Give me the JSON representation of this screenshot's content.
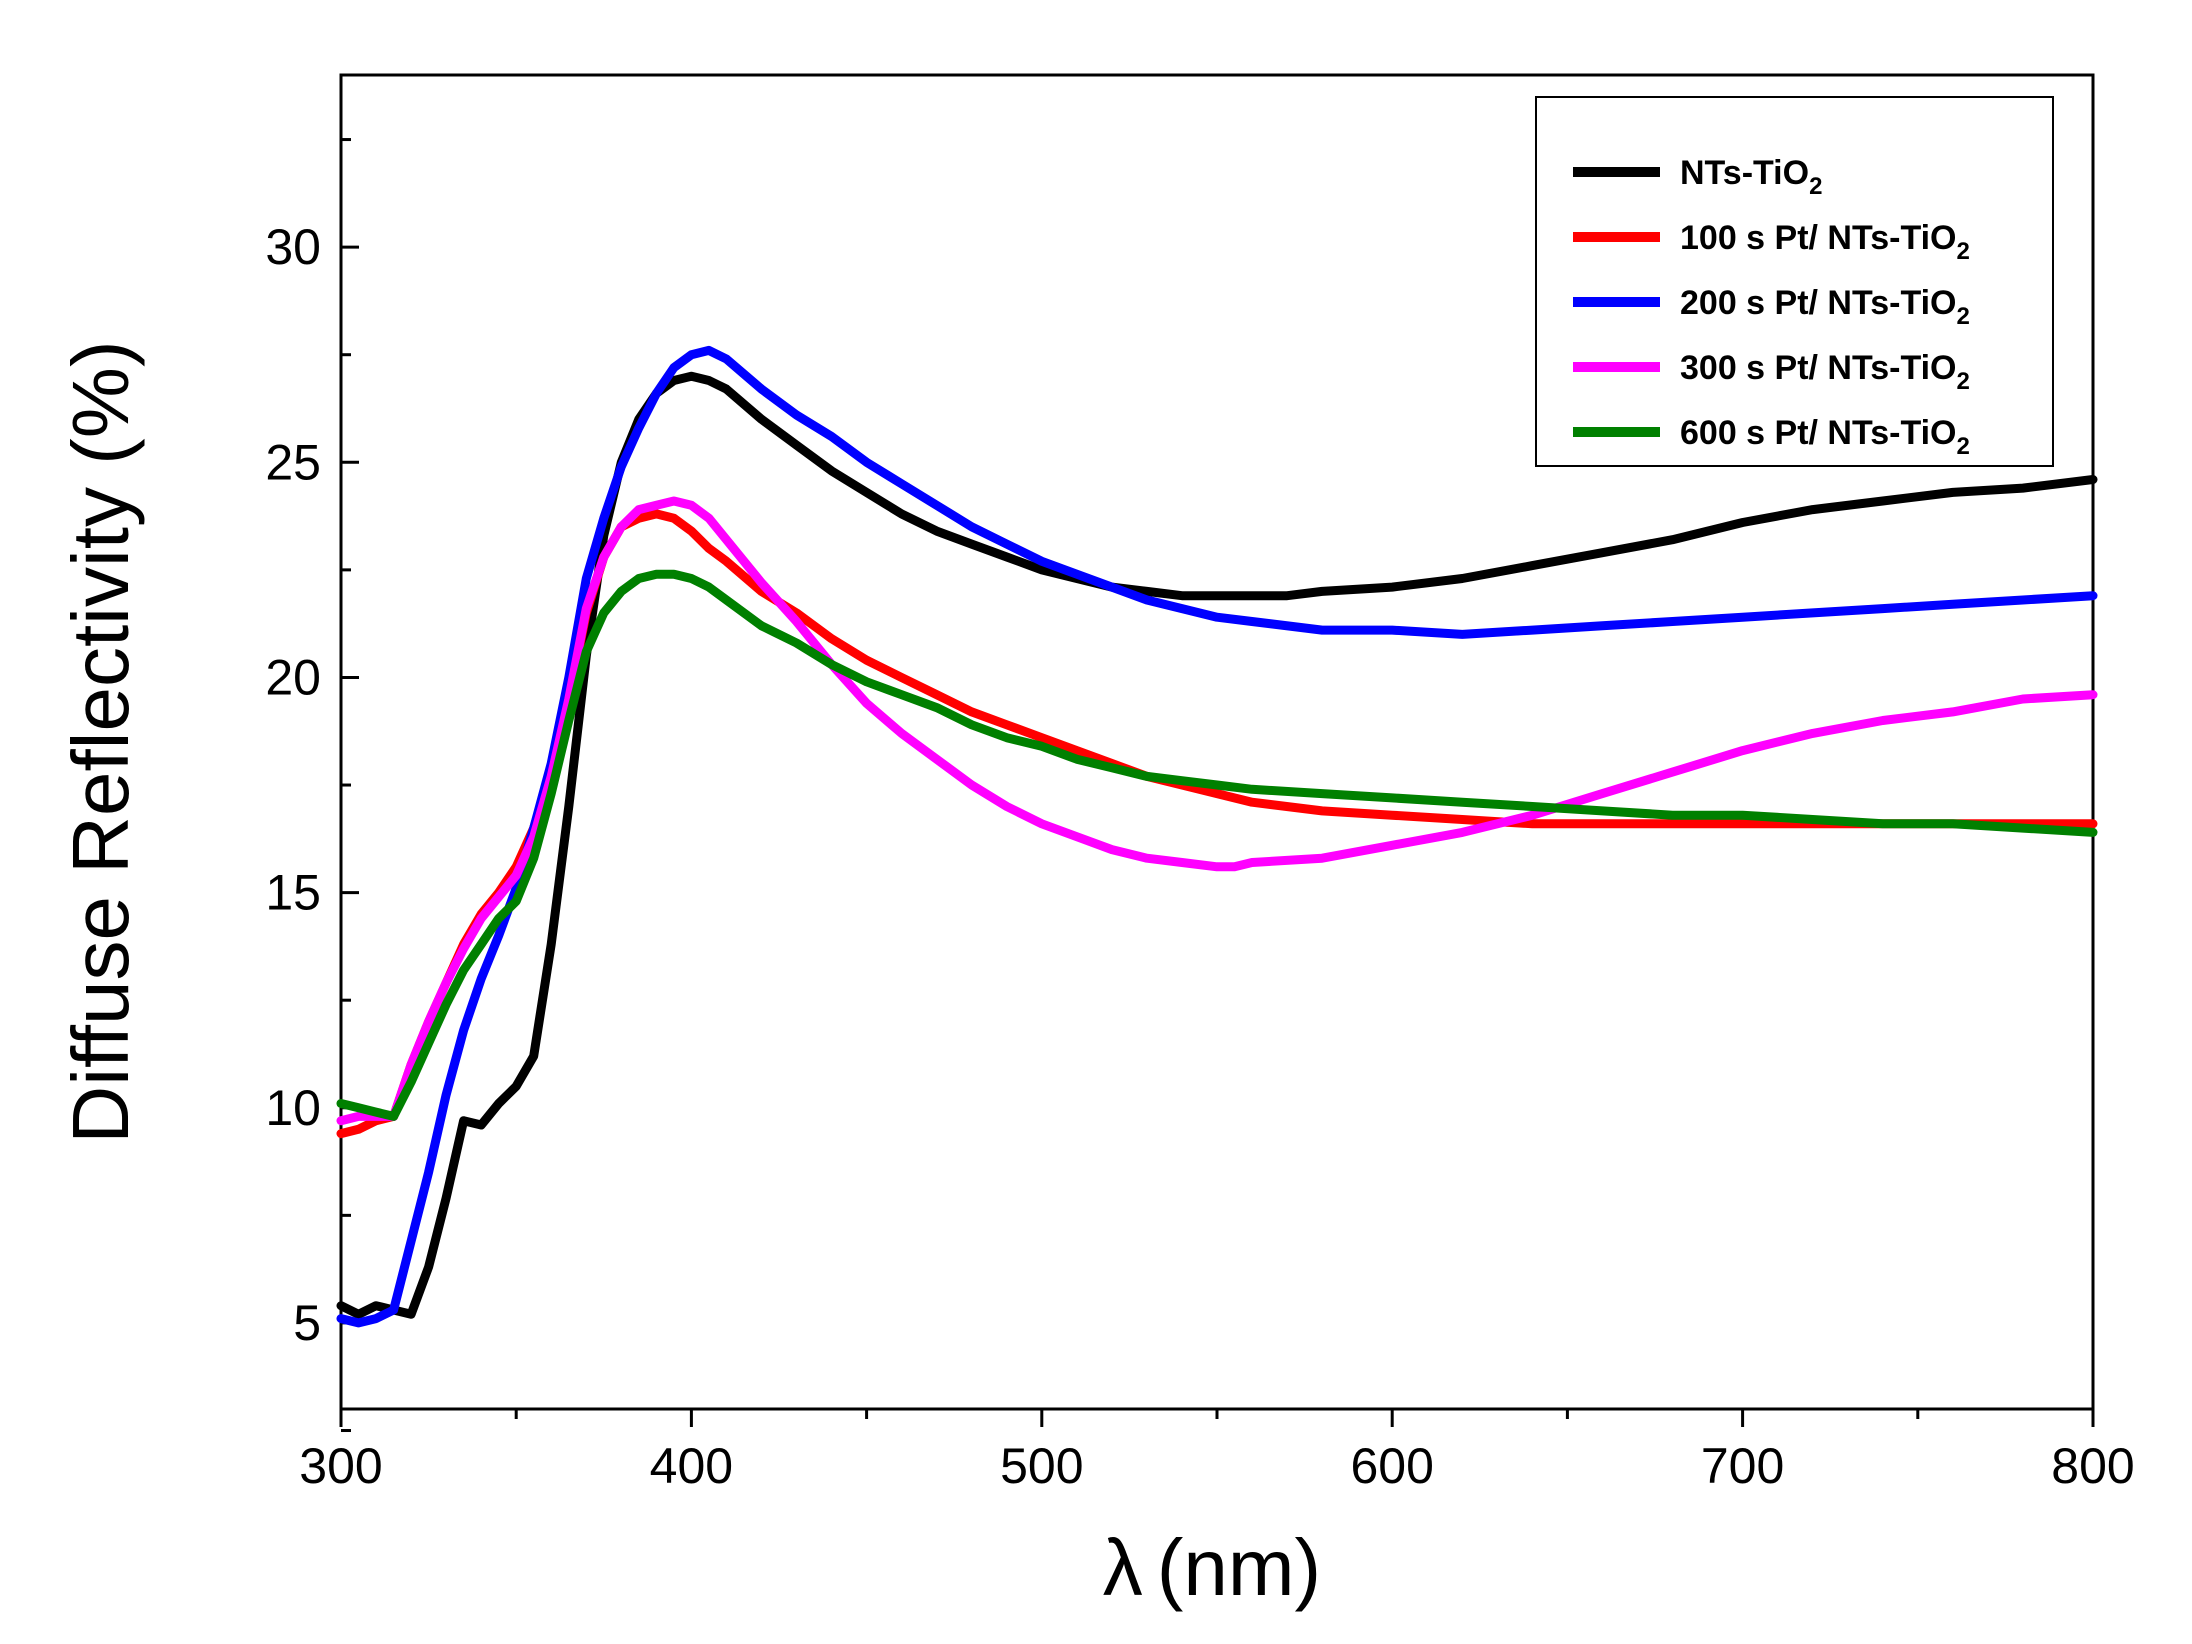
{
  "chart_data": {
    "type": "line",
    "title": "",
    "xlabel_symbol": "λ",
    "xlabel_unit": "(nm)",
    "ylabel": "Diffuse Reflectivity (%)",
    "xlim": [
      300,
      800
    ],
    "ylim": [
      3,
      34
    ],
    "xticks": [
      300,
      400,
      500,
      600,
      700,
      800
    ],
    "yticks": [
      5,
      10,
      15,
      20,
      25,
      30
    ],
    "grid": false,
    "legend_position": "top-right",
    "series": [
      {
        "name": "NTs-TiO",
        "subscript": "2",
        "color": "#000000",
        "x": [
          300,
          305,
          310,
          315,
          320,
          325,
          330,
          335,
          340,
          345,
          350,
          355,
          360,
          365,
          370,
          375,
          380,
          385,
          390,
          395,
          400,
          405,
          410,
          420,
          430,
          440,
          450,
          460,
          470,
          480,
          490,
          500,
          510,
          520,
          530,
          540,
          550,
          560,
          570,
          580,
          600,
          620,
          640,
          660,
          680,
          700,
          720,
          740,
          760,
          780,
          800
        ],
        "y": [
          5.4,
          5.2,
          5.4,
          5.3,
          5.2,
          6.3,
          7.9,
          9.7,
          9.6,
          10.1,
          10.5,
          11.2,
          13.8,
          17.0,
          20.5,
          23.3,
          25.0,
          26.0,
          26.6,
          26.9,
          27.0,
          26.9,
          26.7,
          26.0,
          25.4,
          24.8,
          24.3,
          23.8,
          23.4,
          23.1,
          22.8,
          22.5,
          22.3,
          22.1,
          22.0,
          21.9,
          21.9,
          21.9,
          21.9,
          22.0,
          22.1,
          22.3,
          22.6,
          22.9,
          23.2,
          23.6,
          23.9,
          24.1,
          24.3,
          24.4,
          24.6
        ]
      },
      {
        "name": "100 s Pt/ NTs-TiO",
        "subscript": "2",
        "color": "#ff0000",
        "x": [
          300,
          305,
          310,
          315,
          320,
          325,
          330,
          335,
          340,
          345,
          350,
          355,
          360,
          365,
          370,
          375,
          380,
          385,
          390,
          395,
          400,
          405,
          410,
          420,
          430,
          440,
          450,
          460,
          470,
          480,
          490,
          500,
          510,
          520,
          530,
          540,
          550,
          560,
          580,
          600,
          620,
          640,
          660,
          680,
          700,
          720,
          740,
          760,
          780,
          800
        ],
        "y": [
          9.4,
          9.5,
          9.7,
          9.8,
          11.0,
          12.0,
          12.9,
          13.8,
          14.5,
          15.0,
          15.6,
          16.5,
          17.8,
          19.5,
          21.5,
          22.8,
          23.5,
          23.7,
          23.8,
          23.7,
          23.4,
          23.0,
          22.7,
          22.0,
          21.5,
          20.9,
          20.4,
          20.0,
          19.6,
          19.2,
          18.9,
          18.6,
          18.3,
          18.0,
          17.7,
          17.5,
          17.3,
          17.1,
          16.9,
          16.8,
          16.7,
          16.6,
          16.6,
          16.6,
          16.6,
          16.6,
          16.6,
          16.6,
          16.6,
          16.6
        ]
      },
      {
        "name": "200 s Pt/ NTs-TiO",
        "subscript": "2",
        "color": "#0000ff",
        "x": [
          300,
          305,
          310,
          315,
          320,
          325,
          330,
          335,
          340,
          345,
          350,
          355,
          360,
          365,
          370,
          375,
          380,
          385,
          390,
          395,
          400,
          405,
          410,
          420,
          430,
          440,
          450,
          460,
          470,
          480,
          490,
          500,
          510,
          520,
          530,
          540,
          550,
          560,
          580,
          600,
          620,
          640,
          660,
          680,
          700,
          720,
          740,
          760,
          780,
          800
        ],
        "y": [
          5.1,
          5.0,
          5.1,
          5.3,
          6.9,
          8.5,
          10.3,
          11.8,
          13.0,
          14.0,
          15.1,
          16.5,
          18.0,
          20.0,
          22.3,
          23.7,
          24.9,
          25.8,
          26.6,
          27.2,
          27.5,
          27.6,
          27.4,
          26.7,
          26.1,
          25.6,
          25.0,
          24.5,
          24.0,
          23.5,
          23.1,
          22.7,
          22.4,
          22.1,
          21.8,
          21.6,
          21.4,
          21.3,
          21.1,
          21.1,
          21.0,
          21.1,
          21.2,
          21.3,
          21.4,
          21.5,
          21.6,
          21.7,
          21.8,
          21.9
        ]
      },
      {
        "name": "300 s Pt/ NTs-TiO",
        "subscript": "2",
        "color": "#ff00ff",
        "x": [
          300,
          305,
          310,
          315,
          320,
          325,
          330,
          335,
          340,
          345,
          350,
          355,
          360,
          365,
          370,
          375,
          380,
          385,
          390,
          395,
          400,
          405,
          410,
          420,
          430,
          440,
          450,
          460,
          470,
          480,
          490,
          500,
          510,
          520,
          530,
          540,
          550,
          555,
          560,
          580,
          600,
          620,
          640,
          660,
          680,
          700,
          720,
          740,
          760,
          780,
          800
        ],
        "y": [
          9.7,
          9.8,
          9.8,
          9.8,
          11.0,
          12.0,
          12.9,
          13.7,
          14.4,
          14.9,
          15.4,
          16.3,
          17.7,
          19.5,
          21.6,
          22.8,
          23.5,
          23.9,
          24.0,
          24.1,
          24.0,
          23.7,
          23.2,
          22.2,
          21.3,
          20.3,
          19.4,
          18.7,
          18.1,
          17.5,
          17.0,
          16.6,
          16.3,
          16.0,
          15.8,
          15.7,
          15.6,
          15.6,
          15.7,
          15.8,
          16.1,
          16.4,
          16.8,
          17.3,
          17.8,
          18.3,
          18.7,
          19.0,
          19.2,
          19.5,
          19.6
        ]
      },
      {
        "name": "600 s Pt/ NTs-TiO",
        "subscript": "2",
        "color": "#008000",
        "x": [
          300,
          305,
          310,
          315,
          320,
          325,
          330,
          335,
          340,
          345,
          350,
          355,
          360,
          365,
          370,
          375,
          380,
          385,
          390,
          395,
          400,
          405,
          410,
          420,
          430,
          440,
          450,
          460,
          470,
          480,
          490,
          500,
          510,
          520,
          530,
          540,
          550,
          560,
          580,
          600,
          620,
          640,
          660,
          680,
          700,
          720,
          740,
          760,
          780,
          800
        ],
        "y": [
          10.1,
          10.0,
          9.9,
          9.8,
          10.6,
          11.5,
          12.4,
          13.2,
          13.8,
          14.4,
          14.8,
          15.8,
          17.3,
          19.0,
          20.6,
          21.5,
          22.0,
          22.3,
          22.4,
          22.4,
          22.3,
          22.1,
          21.8,
          21.2,
          20.8,
          20.3,
          19.9,
          19.6,
          19.3,
          18.9,
          18.6,
          18.4,
          18.1,
          17.9,
          17.7,
          17.6,
          17.5,
          17.4,
          17.3,
          17.2,
          17.1,
          17.0,
          16.9,
          16.8,
          16.8,
          16.7,
          16.6,
          16.6,
          16.5,
          16.4
        ]
      }
    ]
  }
}
